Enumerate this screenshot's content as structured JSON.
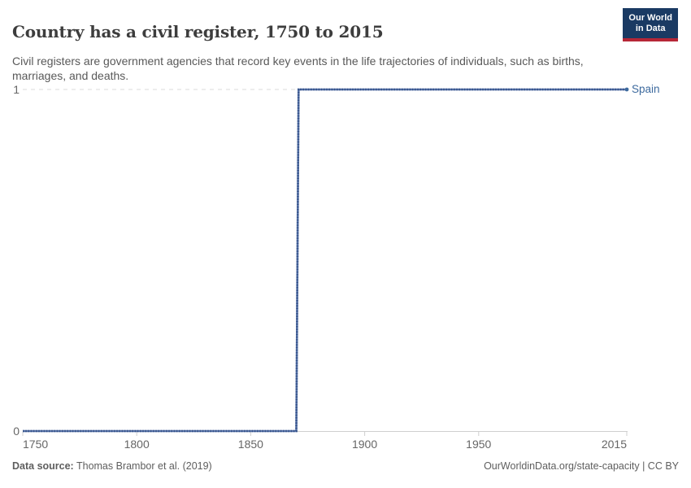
{
  "header": {
    "title": "Country has a civil register, 1750 to 2015",
    "subtitle": "Civil registers are government agencies that record key events in the life trajectories of individuals, such as births, marriages, and deaths.",
    "logo": {
      "line1": "Our World",
      "line2": "in Data"
    }
  },
  "chart_data": {
    "type": "line",
    "title": "Country has a civil register, 1750 to 2015",
    "xlabel": "",
    "ylabel": "",
    "xlim": [
      1750,
      2015
    ],
    "ylim": [
      0,
      1
    ],
    "grid": "dashed horizontal gridline at y=1, solid baseline axis at y=0",
    "legend_position": "label at right end of line",
    "series": [
      {
        "name": "Spain",
        "color": "#4c6a9c",
        "points": [
          [
            1750,
            0
          ],
          [
            1870,
            0
          ],
          [
            1871,
            1
          ],
          [
            2015,
            1
          ]
        ],
        "note": "step line: value 0 from 1750 through 1870, value 1 from 1871 through 2015"
      }
    ],
    "x_ticks": [
      1750,
      1800,
      1850,
      1900,
      1950,
      2015
    ],
    "x_tick_labels": [
      "1750",
      "1800",
      "1850",
      "1900",
      "1950",
      "2015"
    ],
    "y_ticks": [
      0,
      1
    ],
    "y_tick_labels": [
      "0",
      "1"
    ]
  },
  "entity_label": "Spain",
  "footer": {
    "source_label": "Data source:",
    "source_text": " Thomas Brambor et al. (2019)",
    "credit": "OurWorldinData.org/state-capacity | CC BY"
  },
  "colors": {
    "line": "#5b76ab",
    "line_dots": "#36538a",
    "entity_label": "#3d6a9e",
    "gridline": "#e2e2e2",
    "axis": "#cfcfcf",
    "title_text": "#3d3d3d",
    "subtitle_text": "#595959",
    "tick_text": "#666666",
    "footer_text": "#5e5e5e",
    "logo_bg": "#1a3a63",
    "logo_accent": "#b62737"
  }
}
